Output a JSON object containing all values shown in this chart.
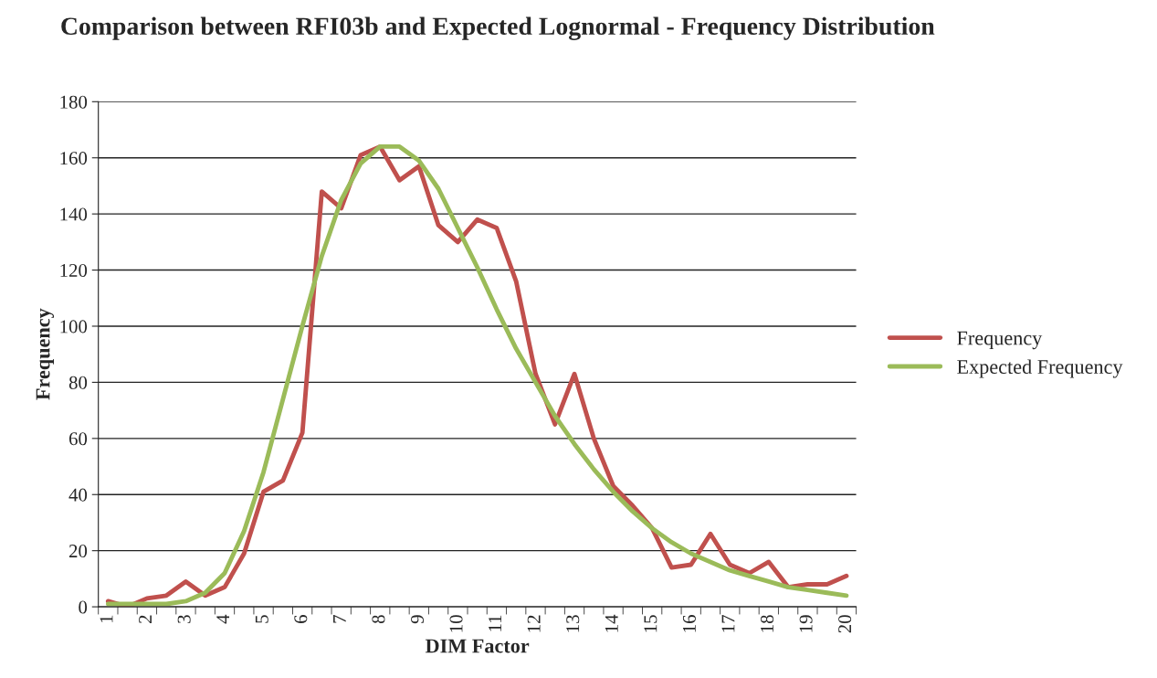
{
  "chart_data": {
    "type": "line",
    "title": "Comparison between RFI03b and Expected Lognormal - Frequency Distribution",
    "xlabel": "DIM Factor",
    "ylabel": "Frequency",
    "categories": [
      "1",
      null,
      "2",
      null,
      "3",
      null,
      "4",
      null,
      "5",
      null,
      "6",
      null,
      "7",
      null,
      "8",
      null,
      "9",
      null,
      "10",
      null,
      "11",
      null,
      "12",
      null,
      "13",
      null,
      "14",
      null,
      "15",
      null,
      "16",
      null,
      "17",
      null,
      "18",
      null,
      "19",
      null,
      "20"
    ],
    "series": [
      {
        "name": "Frequency",
        "color": "#c0504d",
        "values": [
          2,
          0,
          3,
          4,
          9,
          4,
          7,
          19,
          41,
          45,
          62,
          148,
          142,
          161,
          164,
          152,
          157,
          136,
          130,
          138,
          135,
          116,
          83,
          65,
          83,
          60,
          43,
          36,
          28,
          14,
          15,
          26,
          15,
          12,
          16,
          7,
          8,
          8,
          11
        ]
      },
      {
        "name": "Expected Frequency",
        "color": "#9bbb59",
        "values": [
          1,
          1,
          1,
          1,
          2,
          5,
          12,
          27,
          48,
          74,
          100,
          125,
          145,
          158,
          164,
          164,
          159,
          149,
          135,
          121,
          106,
          92,
          80,
          68,
          58,
          49,
          41,
          34,
          28,
          23,
          19,
          16,
          13,
          11,
          9,
          7,
          6,
          5,
          4
        ]
      }
    ],
    "ylim": [
      0,
      180
    ],
    "yticks": [
      0,
      20,
      40,
      60,
      80,
      100,
      120,
      140,
      160,
      180
    ],
    "grid": "y",
    "legend": "right",
    "marker": "none",
    "line_style": "solid"
  }
}
